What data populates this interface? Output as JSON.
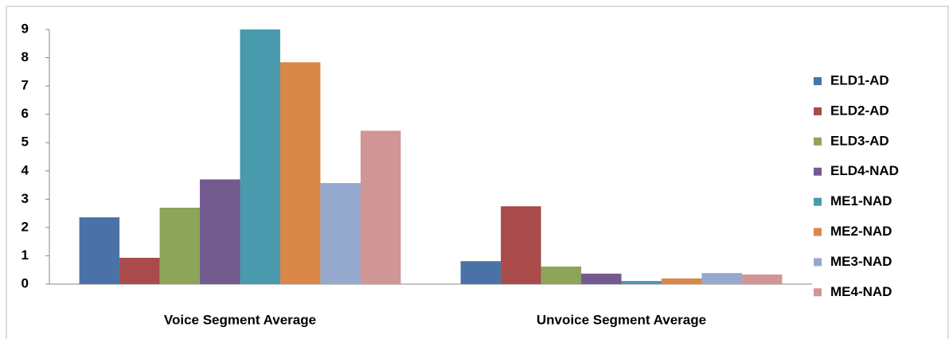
{
  "chart_data": {
    "type": "bar",
    "categories": [
      "Voice Segment Average",
      "Unvoice Segment Average"
    ],
    "series": [
      {
        "name": "ELD1-AD",
        "color": "#4a72a6",
        "values": [
          2.36,
          0.81
        ]
      },
      {
        "name": "ELD2-AD",
        "color": "#a84b4a",
        "values": [
          0.93,
          2.75
        ]
      },
      {
        "name": "ELD3-AD",
        "color": "#8ca55a",
        "values": [
          2.7,
          0.62
        ]
      },
      {
        "name": "ELD4-NAD",
        "color": "#735a8f",
        "values": [
          3.7,
          0.37
        ]
      },
      {
        "name": "ME1-NAD",
        "color": "#4a9aad",
        "values": [
          9.0,
          0.11
        ]
      },
      {
        "name": "ME2-NAD",
        "color": "#d9884a",
        "values": [
          7.84,
          0.2
        ]
      },
      {
        "name": "ME3-NAD",
        "color": "#95a9cf",
        "values": [
          3.57,
          0.39
        ]
      },
      {
        "name": "ME4-NAD",
        "color": "#d09594",
        "values": [
          5.42,
          0.34
        ]
      }
    ],
    "ylim": [
      0,
      9
    ],
    "yticks": [
      0,
      1,
      2,
      3,
      4,
      5,
      6,
      7,
      8,
      9
    ],
    "grid": false,
    "legend": "right"
  }
}
